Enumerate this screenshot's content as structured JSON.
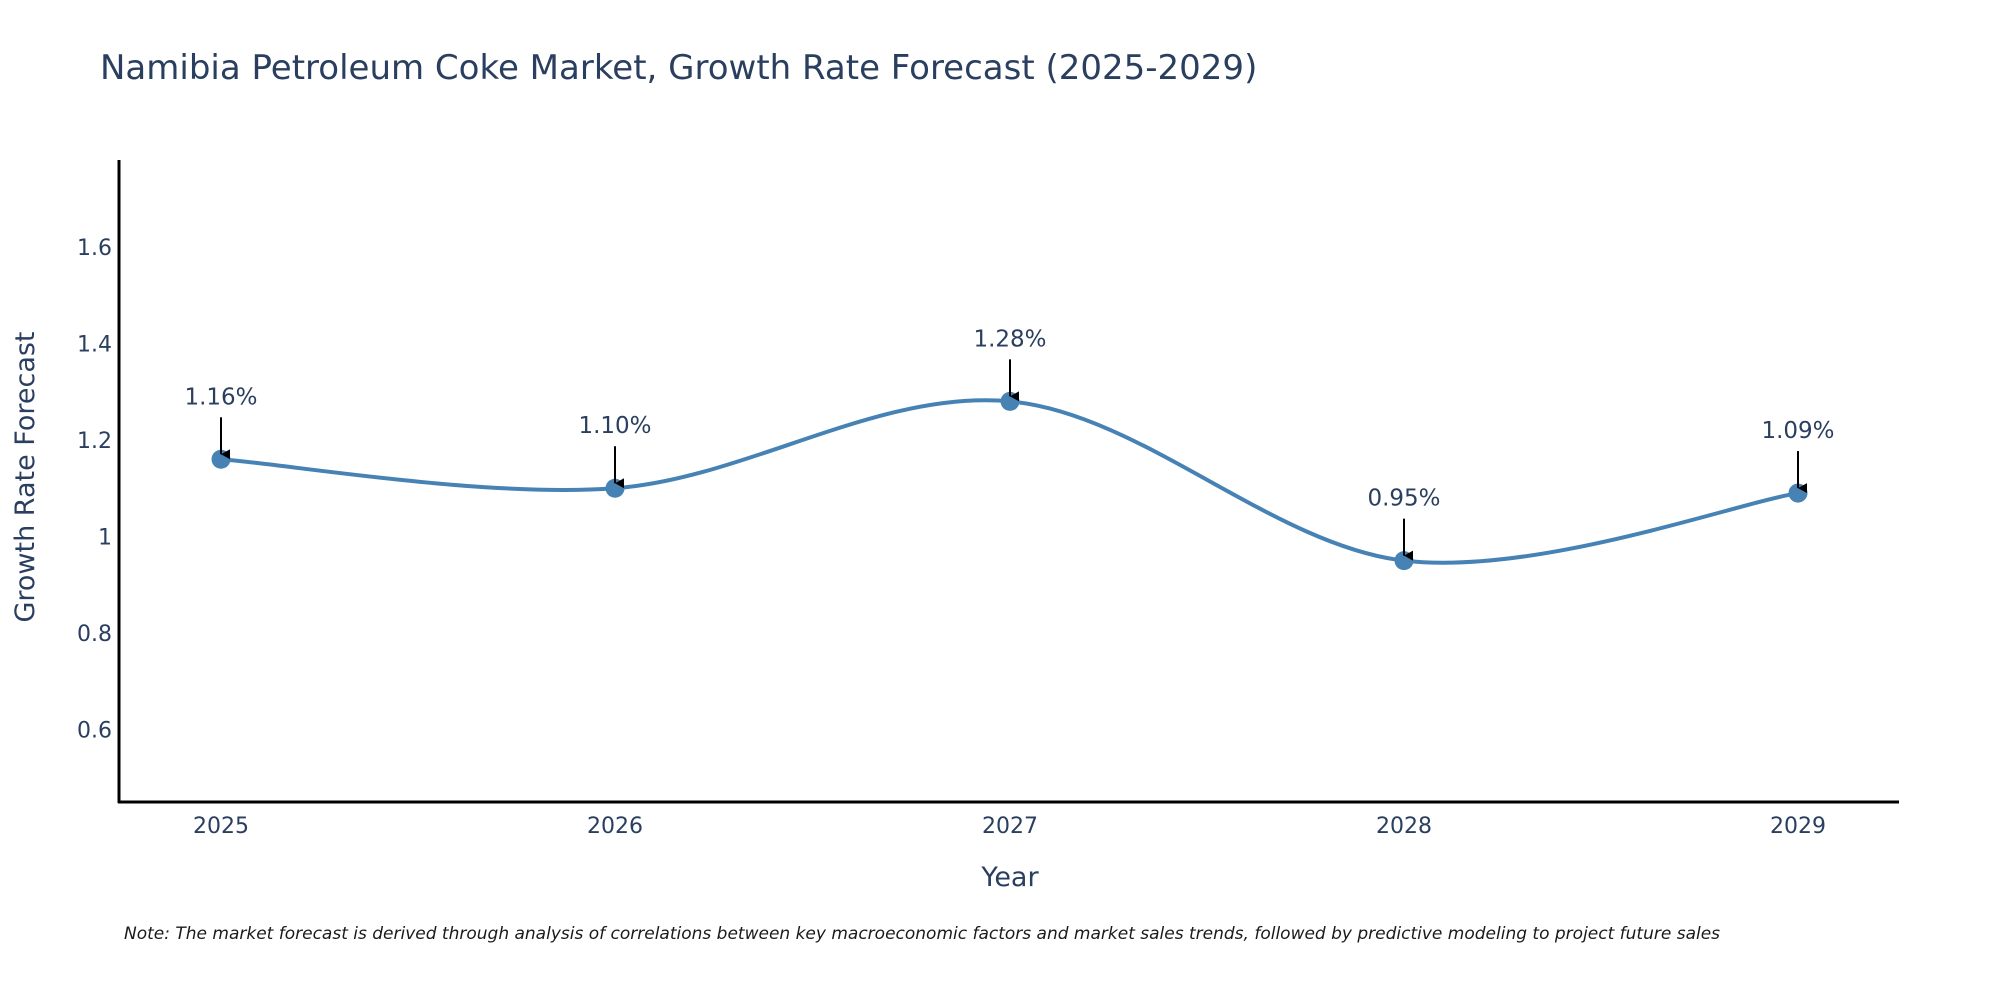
{
  "chart_data": {
    "type": "line",
    "title": "Namibia Petroleum Coke Market, Growth Rate Forecast (2025-2029)",
    "xlabel": "Year",
    "ylabel": "Growth Rate Forecast",
    "categories": [
      "2025",
      "2026",
      "2027",
      "2028",
      "2029"
    ],
    "series": [
      {
        "name": "Growth Rate Forecast",
        "values": [
          1.16,
          1.1,
          1.28,
          0.95,
          1.09
        ],
        "labels": [
          "1.16%",
          "1.10%",
          "1.28%",
          "0.95%",
          "1.09%"
        ],
        "color": "#4682b4"
      }
    ],
    "yticks": [
      0.6,
      0.8,
      1,
      1.2,
      1.4,
      1.6
    ],
    "ytick_labels": [
      "0.6",
      "0.8",
      "1",
      "1.2",
      "1.4",
      "1.6"
    ],
    "ylim": [
      0.45,
      1.78
    ],
    "grid": false,
    "line_shape": "spline",
    "annotation_arrow_color": "#000000",
    "axis_color": "#000000",
    "text_color": "#2a3f5f",
    "note": "Note: The market forecast is derived through analysis of correlations between key macroeconomic factors and market sales trends, followed by predictive modeling to project future sales"
  }
}
